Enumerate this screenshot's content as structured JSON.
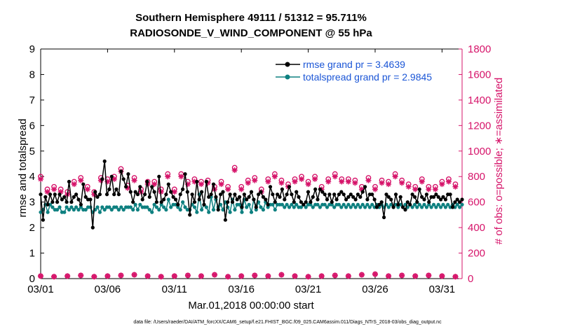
{
  "chart_data": {
    "type": "line",
    "title": [
      "Southern Hemisphere 49111 / 51312 = 95.711%",
      "RADIOSONDE_V_WIND_COMPONENT @ 55 hPa"
    ],
    "xlabel": "Mar.01,2018 00:00:00 start",
    "ylabel_left": "rmse and totalspread",
    "ylabel_right": "# of obs: o=possible; ∗=assimilated",
    "xlim": [
      0,
      31.5
    ],
    "ylim_left": [
      0,
      9
    ],
    "ylim_right": [
      0,
      1800
    ],
    "x_ticks": [
      0,
      5,
      10,
      15,
      20,
      25,
      30
    ],
    "x_tick_labels": [
      "03/01",
      "03/06",
      "03/11",
      "03/16",
      "03/21",
      "03/26",
      "03/31"
    ],
    "y_left_ticks": [
      "0",
      "1",
      "2",
      "3",
      "4",
      "5",
      "6",
      "7",
      "8",
      "9"
    ],
    "y_right_ticks": [
      "0",
      "200",
      "400",
      "600",
      "800",
      "1000",
      "1200",
      "1400",
      "1600",
      "1800"
    ],
    "colors": {
      "rmse": "#000000",
      "spread": "#0e8080",
      "obs": "#d6146a",
      "legend_text": "#1a55d6"
    },
    "series": [
      {
        "name": "rmse grand pr = 3.4639",
        "axis": "left",
        "marker": "filled-circle",
        "values": [
          3.3,
          2.3,
          3.2,
          2.9,
          3.3,
          3.0,
          3.3,
          3.0,
          3.3,
          3.1,
          3.2,
          3.0,
          3.8,
          3.0,
          3.2,
          3.3,
          3.1,
          2.9,
          3.7,
          3.2,
          3.1,
          3.1,
          2.0,
          3.4,
          3.2,
          3.3,
          3.9,
          4.6,
          3.3,
          3.5,
          4.0,
          3.3,
          3.5,
          3.3,
          4.2,
          3.9,
          3.6,
          4.1,
          3.4,
          3.0,
          3.4,
          3.3,
          3.6,
          3.1,
          3.3,
          3.8,
          3.2,
          3.6,
          3.4,
          3.0,
          4.0,
          3.0,
          3.1,
          3.3,
          3.7,
          3.4,
          3.2,
          3.1,
          2.9,
          3.3,
          3.5,
          4.1,
          3.4,
          2.5,
          3.3,
          3.0,
          3.8,
          3.1,
          3.4,
          2.9,
          3.8,
          3.2,
          3.3,
          3.7,
          3.2,
          2.7,
          3.3,
          3.4,
          2.3,
          3.0,
          3.3,
          3.0,
          3.3,
          3.1,
          3.2,
          2.8,
          3.3,
          3.1,
          3.2,
          3.4,
          3.1,
          2.8,
          3.3,
          3.4,
          3.2,
          3.1,
          2.9,
          3.6,
          3.3,
          3.0,
          3.3,
          3.2,
          3.5,
          3.1,
          3.3,
          3.6,
          3.3,
          3.0,
          3.4,
          3.2,
          3.0,
          2.9,
          3.0,
          3.4,
          3.0,
          3.2,
          3.5,
          3.1,
          3.5,
          3.4,
          3.3,
          3.1,
          3.3,
          3.0,
          3.3,
          3.1,
          3.3,
          3.4,
          3.3,
          3.1,
          3.2,
          3.3,
          3.2,
          3.1,
          3.3,
          3.2,
          3.4,
          3.6,
          3.1,
          3.3,
          3.3,
          3.1,
          2.8,
          2.9,
          3.0,
          2.4,
          3.3,
          3.2,
          3.1,
          2.8,
          3.3,
          2.9,
          3.2,
          2.8,
          2.7,
          3.0,
          2.9,
          3.3,
          3.2,
          3.0,
          3.5,
          3.2,
          3.1,
          3.3,
          3.0,
          3.2,
          3.2,
          3.3,
          3.2,
          3.1,
          3.2,
          3.1,
          3.3,
          3.3,
          2.8,
          3.0,
          3.1,
          3.0,
          3.1
        ]
      },
      {
        "name": "totalspread grand pr = 2.9845",
        "axis": "left",
        "marker": "filled-circle",
        "values": [
          2.6,
          2.7,
          2.9,
          2.6,
          2.9,
          2.8,
          2.7,
          2.7,
          2.8,
          2.6,
          2.6,
          2.8,
          2.7,
          2.8,
          2.7,
          2.8,
          2.7,
          2.8,
          2.7,
          2.7,
          2.8,
          2.8,
          2.6,
          2.7,
          2.8,
          2.6,
          2.8,
          2.7,
          2.8,
          2.8,
          2.7,
          2.8,
          2.8,
          2.7,
          2.8,
          2.7,
          2.8,
          2.8,
          2.8,
          2.7,
          2.9,
          2.7,
          2.9,
          2.8,
          2.8,
          2.8,
          2.7,
          2.6,
          2.9,
          2.8,
          2.7,
          2.9,
          2.8,
          2.7,
          3.1,
          2.8,
          2.9,
          2.9,
          2.8,
          2.7,
          3.0,
          2.8,
          2.7,
          2.7,
          2.9,
          2.8,
          2.6,
          3.3,
          2.7,
          2.9,
          2.8,
          2.6,
          3.2,
          2.7,
          3.1,
          2.8,
          2.9,
          2.7,
          3.0,
          2.8,
          2.6,
          3.1,
          2.7,
          2.9,
          2.9,
          2.6,
          3.1,
          2.8,
          2.9,
          2.6,
          3.1,
          2.7,
          3.0,
          2.8,
          2.7,
          3.0,
          2.8,
          2.9,
          2.9,
          2.7,
          2.9,
          2.9,
          2.9,
          2.8,
          2.9,
          2.8,
          2.9,
          2.8,
          2.9,
          2.8,
          2.8,
          2.9,
          2.8,
          2.9,
          2.9,
          2.8,
          2.9,
          2.9,
          2.8,
          2.9,
          2.9,
          2.8,
          2.9,
          2.9,
          2.8,
          2.9,
          2.9,
          2.8,
          2.9,
          2.8,
          2.9,
          2.8,
          2.9,
          2.8,
          2.9,
          2.8,
          2.9,
          2.8,
          2.9,
          2.8,
          2.9,
          2.8,
          2.9,
          2.8,
          2.9,
          2.8,
          2.9,
          2.8,
          2.9,
          2.8,
          2.9,
          2.8,
          2.9,
          2.8,
          2.9,
          2.8,
          2.9,
          2.8,
          2.9,
          2.8,
          2.9,
          2.8,
          2.9,
          2.8,
          2.9,
          2.8,
          2.9,
          2.8,
          2.9,
          2.8,
          2.9,
          2.8,
          2.9,
          2.8,
          2.9,
          2.8,
          2.9,
          2.8,
          2.9
        ]
      },
      {
        "name": "obs possible",
        "axis": "right",
        "marker": "open-circle",
        "x": [
          0,
          0.5,
          1,
          1.5,
          2,
          2.5,
          3,
          3.5,
          4,
          4.5,
          5,
          5.5,
          6,
          6.5,
          7,
          7.5,
          8,
          8.5,
          9,
          9.5,
          10,
          10.5,
          11,
          11.5,
          12,
          12.5,
          13,
          13.5,
          14,
          14.5,
          15,
          15.5,
          16,
          16.5,
          17,
          17.5,
          18,
          18.5,
          19,
          19.5,
          20,
          20.5,
          21,
          21.5,
          22,
          22.5,
          23,
          23.5,
          24,
          24.5,
          25,
          25.5,
          26,
          26.5,
          27,
          27.5,
          28,
          28.5,
          29,
          29.5,
          30,
          30.5,
          31
        ],
        "values": [
          800,
          700,
          720,
          700,
          680,
          760,
          790,
          720,
          680,
          790,
          780,
          800,
          860,
          730,
          790,
          700,
          760,
          760,
          700,
          820,
          700,
          820,
          760,
          780,
          760,
          770,
          720,
          760,
          720,
          870,
          720,
          770,
          790,
          700,
          780,
          820,
          770,
          740,
          780,
          800,
          760,
          800,
          720,
          780,
          820,
          780,
          780,
          770,
          720,
          790,
          720,
          770,
          760,
          820,
          770,
          740,
          720,
          780,
          720,
          720,
          760,
          780,
          740
        ]
      },
      {
        "name": "obs assimilated",
        "axis": "right",
        "marker": "asterisk",
        "x": [
          0,
          0.5,
          1,
          1.5,
          2,
          2.5,
          3,
          3.5,
          4,
          4.5,
          5,
          5.5,
          6,
          6.5,
          7,
          7.5,
          8,
          8.5,
          9,
          9.5,
          10,
          10.5,
          11,
          11.5,
          12,
          12.5,
          13,
          13.5,
          14,
          14.5,
          15,
          15.5,
          16,
          16.5,
          17,
          17.5,
          18,
          18.5,
          19,
          19.5,
          20,
          20.5,
          21,
          21.5,
          22,
          22.5,
          23,
          23.5,
          24,
          24.5,
          25,
          25.5,
          26,
          26.5,
          27,
          27.5,
          28,
          28.5,
          29,
          29.5,
          30,
          30.5,
          31
        ],
        "values": [
          780,
          680,
          700,
          680,
          660,
          740,
          770,
          700,
          660,
          770,
          760,
          780,
          840,
          710,
          770,
          680,
          740,
          740,
          680,
          800,
          680,
          800,
          740,
          760,
          740,
          750,
          700,
          740,
          700,
          850,
          700,
          750,
          770,
          680,
          760,
          800,
          750,
          720,
          760,
          780,
          740,
          780,
          700,
          760,
          800,
          760,
          760,
          750,
          700,
          770,
          700,
          750,
          740,
          800,
          750,
          720,
          700,
          760,
          700,
          700,
          740,
          760,
          720
        ]
      },
      {
        "name": "obs near zero",
        "axis": "right",
        "marker": "open-circle-and-asterisk",
        "x": [
          0,
          1,
          2,
          3,
          4,
          5,
          6,
          7,
          8,
          9,
          10,
          11,
          12,
          13,
          14,
          15,
          16,
          17,
          18,
          19,
          20,
          21,
          22,
          23,
          24,
          25,
          26,
          27,
          28,
          29,
          30,
          31
        ],
        "values": [
          20,
          15,
          20,
          25,
          15,
          20,
          25,
          30,
          20,
          15,
          20,
          25,
          20,
          30,
          15,
          20,
          25,
          20,
          30,
          20,
          15,
          20,
          25,
          20,
          30,
          35,
          20,
          25,
          20,
          25,
          20,
          15
        ]
      }
    ]
  },
  "legend": {
    "rmse_label": "rmse grand pr = 3.4639",
    "spread_label": "totalspread grand pr = 2.9845"
  },
  "footer": "data file: /Users/raeder/DAI/ATM_forcXX/CAM6_setup/f.e21.FHIST_BGC.f09_025.CAM6assim.011/Diags_NTrS_2018-03/obs_diag_output.nc"
}
